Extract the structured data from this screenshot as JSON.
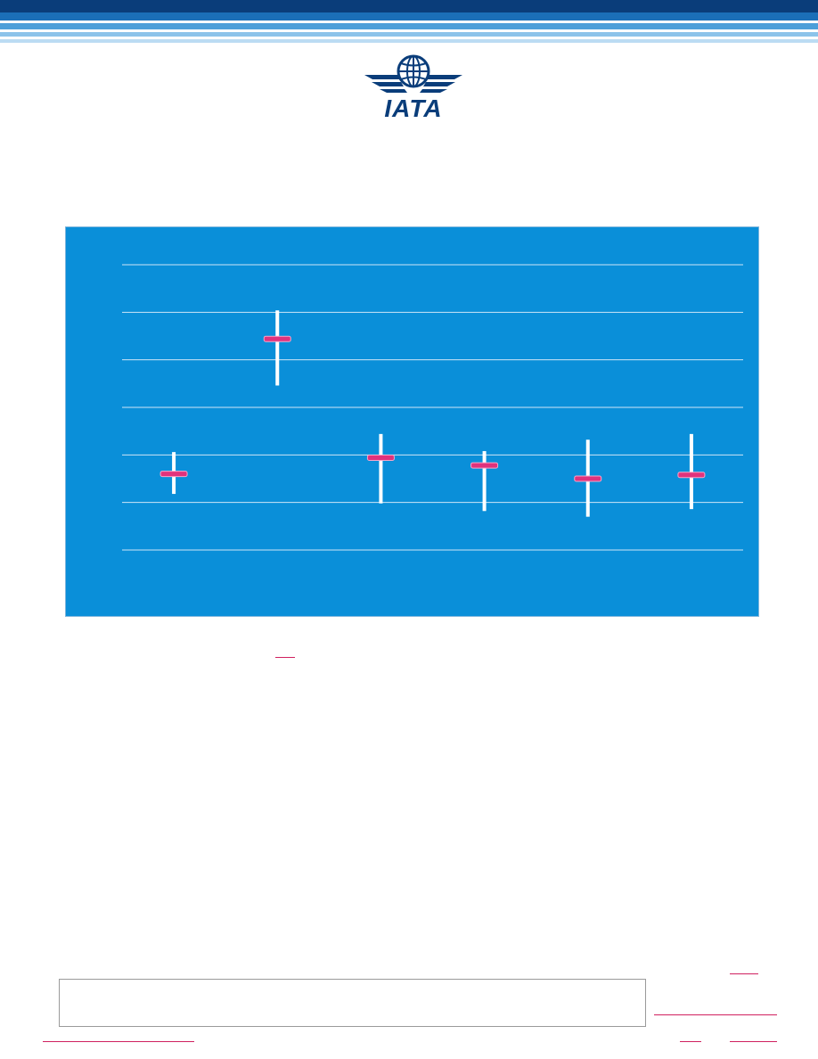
{
  "header": {
    "logo_text": "IATA",
    "logo_icon": "globe-wings-icon",
    "brand_color": "#0a3d7a"
  },
  "colors": {
    "panel_background": "#0a8fd9",
    "range_bar": "#ffffff",
    "marker": "#e0327c",
    "gridline": "#cfe6f7",
    "link_underline": "#d0215f"
  },
  "chart_data": {
    "type": "range",
    "title": "",
    "xlabel": "",
    "ylabel": "",
    "grid": true,
    "gridline_count": 7,
    "categories": [
      "",
      "",
      "",
      "",
      "",
      ""
    ],
    "ylim": [
      0,
      6
    ],
    "series": [
      {
        "values": [
          {
            "low": 1.18,
            "mid": 1.6,
            "high": 2.06
          },
          {
            "low": 3.46,
            "mid": 4.44,
            "high": 5.04
          },
          {
            "low": 0.98,
            "mid": 1.94,
            "high": 2.44
          },
          {
            "low": 0.82,
            "mid": 1.78,
            "high": 2.08
          },
          {
            "low": 0.7,
            "mid": 1.5,
            "high": 2.32
          },
          {
            "low": 0.86,
            "mid": 1.58,
            "high": 2.44
          }
        ]
      }
    ]
  }
}
